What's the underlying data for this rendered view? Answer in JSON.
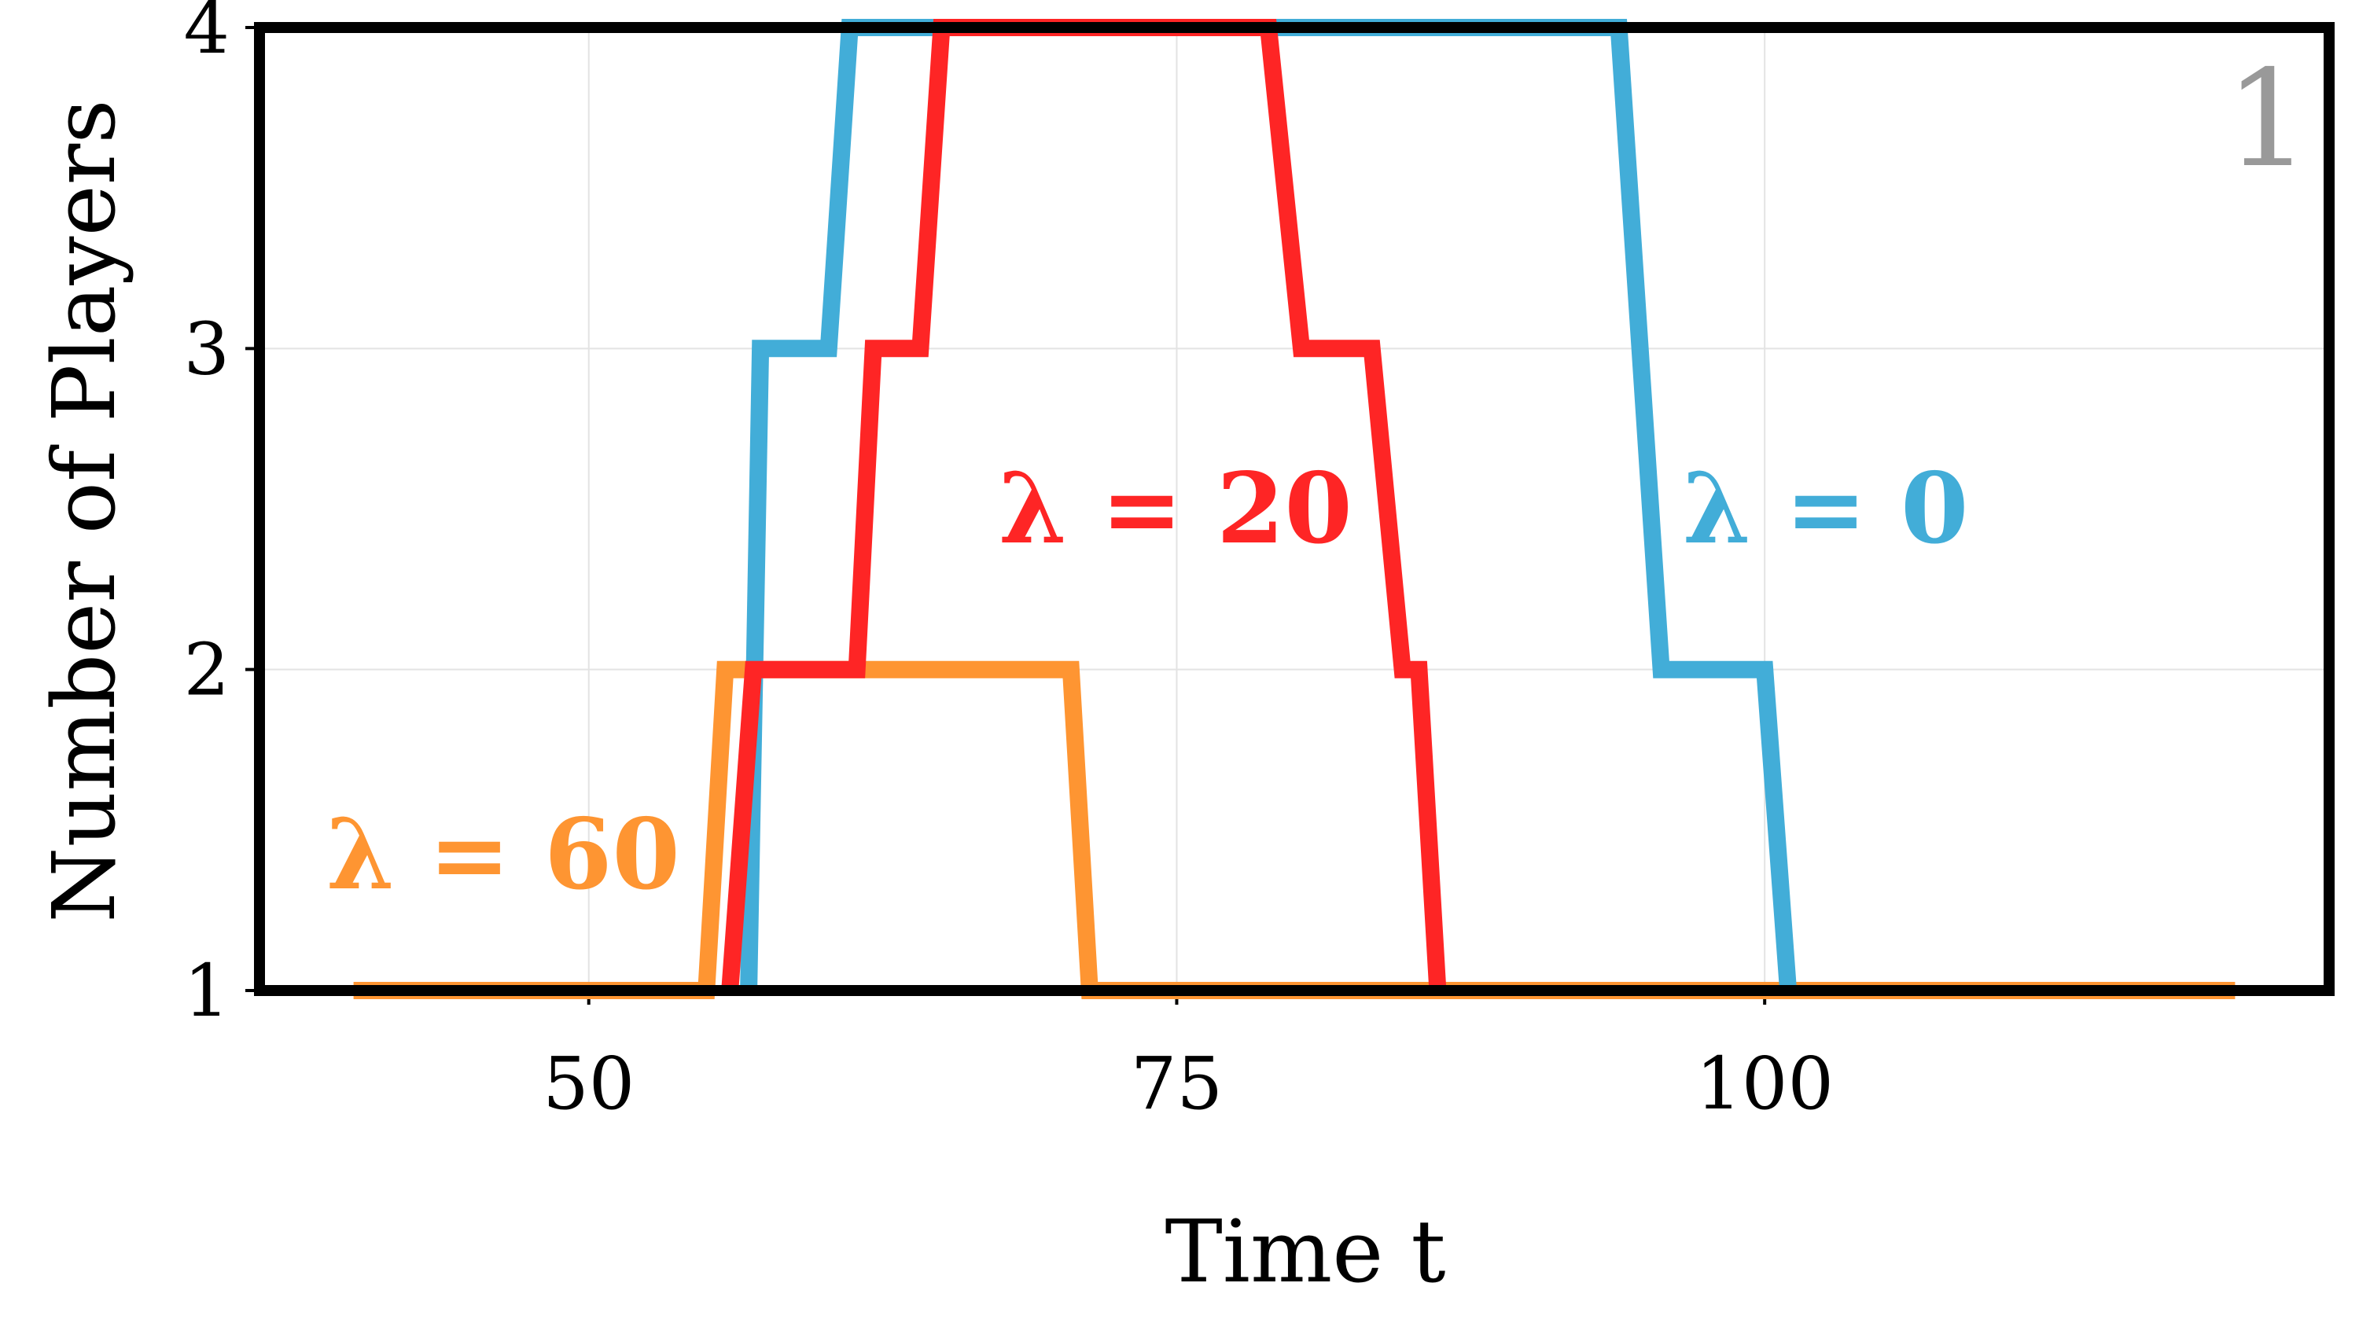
{
  "chart_data": {
    "type": "line",
    "xlabel": "Time t",
    "ylabel": "Number of Players",
    "xlim": [
      36,
      124
    ],
    "ylim": [
      1,
      4
    ],
    "xticks": [
      50,
      75,
      100
    ],
    "yticks": [
      1,
      2,
      3,
      4
    ],
    "grid": true,
    "panel_label": "1",
    "series": [
      {
        "name": "λ = 0",
        "color": "#42add8",
        "x": [
          56.8,
          57.3,
          60.2,
          61.1,
          93.8,
          95.6,
          100.0,
          101.0
        ],
        "y": [
          1,
          3,
          3,
          4,
          4,
          2,
          2,
          1
        ]
      },
      {
        "name": "λ = 20",
        "color": "#fe2525",
        "x": [
          56.0,
          57.0,
          61.4,
          62.1,
          64.1,
          65.0,
          78.9,
          80.3,
          83.3,
          84.6,
          85.3,
          86.1
        ],
        "y": [
          1,
          2,
          2,
          3,
          3,
          4,
          4,
          3,
          3,
          2,
          2,
          1
        ]
      },
      {
        "name": "λ = 60",
        "color": "#fe9532",
        "x": [
          40,
          55.0,
          55.8,
          70.5,
          71.3,
          120
        ],
        "y": [
          1,
          1,
          2,
          2,
          1,
          1
        ]
      }
    ]
  }
}
